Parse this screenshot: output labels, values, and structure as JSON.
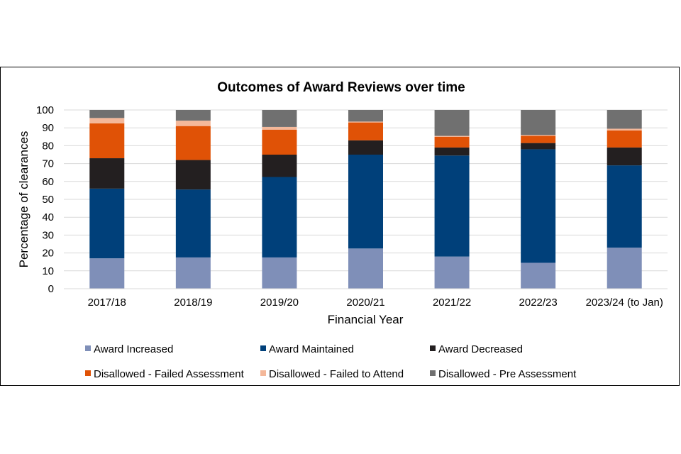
{
  "chart_data": {
    "type": "bar",
    "stacked": true,
    "title": "Outcomes of Award Reviews over time",
    "xlabel": "Financial Year",
    "ylabel": "Percentage of clearances",
    "ylim": [
      0,
      100
    ],
    "yticks": [
      0,
      10,
      20,
      30,
      40,
      50,
      60,
      70,
      80,
      90,
      100
    ],
    "grid": true,
    "legend_position": "bottom",
    "categories": [
      "2017/18",
      "2018/19",
      "2019/20",
      "2020/21",
      "2021/22",
      "2022/23",
      "2023/24 (to Jan)"
    ],
    "series": [
      {
        "name": "Award Increased",
        "color": "#7f8fb8",
        "values": [
          17,
          17.5,
          17.5,
          22.5,
          18,
          14.5,
          23
        ]
      },
      {
        "name": "Award Maintained",
        "color": "#00407a",
        "values": [
          39,
          38,
          45,
          52.5,
          56.5,
          63.5,
          46
        ]
      },
      {
        "name": "Award Decreased",
        "color": "#231f20",
        "values": [
          17,
          16.5,
          12.5,
          8,
          4.5,
          3.5,
          10
        ]
      },
      {
        "name": "Disallowed - Failed Assessment",
        "color": "#e05206",
        "values": [
          19.5,
          19,
          14,
          10,
          6,
          4,
          9.5
        ]
      },
      {
        "name": "Disallowed - Failed to Attend",
        "color": "#f4b89a",
        "values": [
          3,
          3,
          1.5,
          0.5,
          0.5,
          0.5,
          1
        ]
      },
      {
        "name": "Disallowed - Pre Assessment",
        "color": "#707070",
        "values": [
          4.5,
          6,
          9.5,
          6.5,
          14.5,
          14,
          10.5
        ]
      }
    ]
  }
}
